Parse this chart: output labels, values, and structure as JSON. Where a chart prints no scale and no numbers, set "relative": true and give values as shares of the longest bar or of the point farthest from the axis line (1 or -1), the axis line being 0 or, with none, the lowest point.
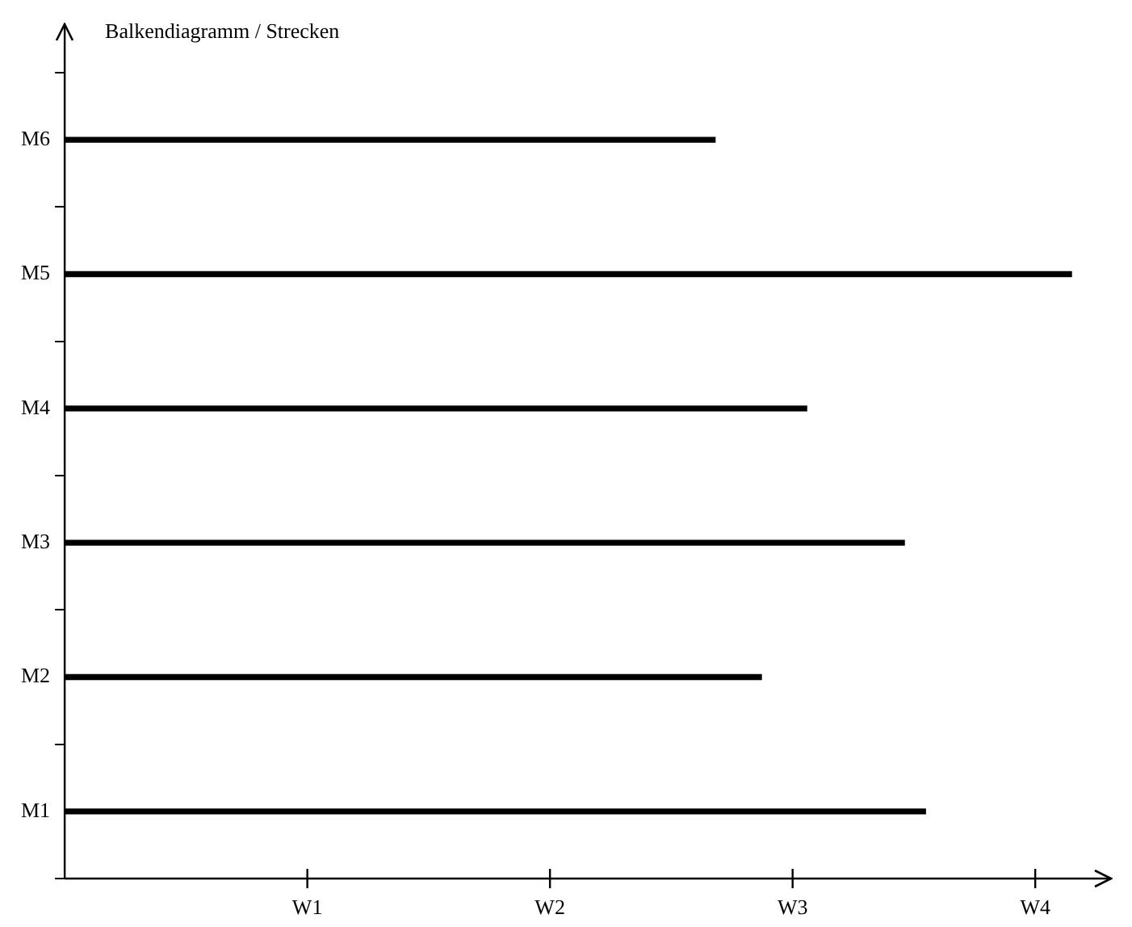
{
  "chart_data": {
    "type": "bar",
    "orientation": "horizontal",
    "relative": true,
    "title": "Balkendiagramm / Strecken",
    "categories": [
      "M6",
      "M5",
      "M4",
      "M3",
      "M2",
      "M1"
    ],
    "values": [
      0.646,
      1,
      0.737,
      0.834,
      0.692,
      0.855
    ],
    "color": "#000000",
    "annotations": [
      "W1",
      "W2",
      "W3",
      "W4"
    ],
    "grid": false,
    "legend": false
  }
}
